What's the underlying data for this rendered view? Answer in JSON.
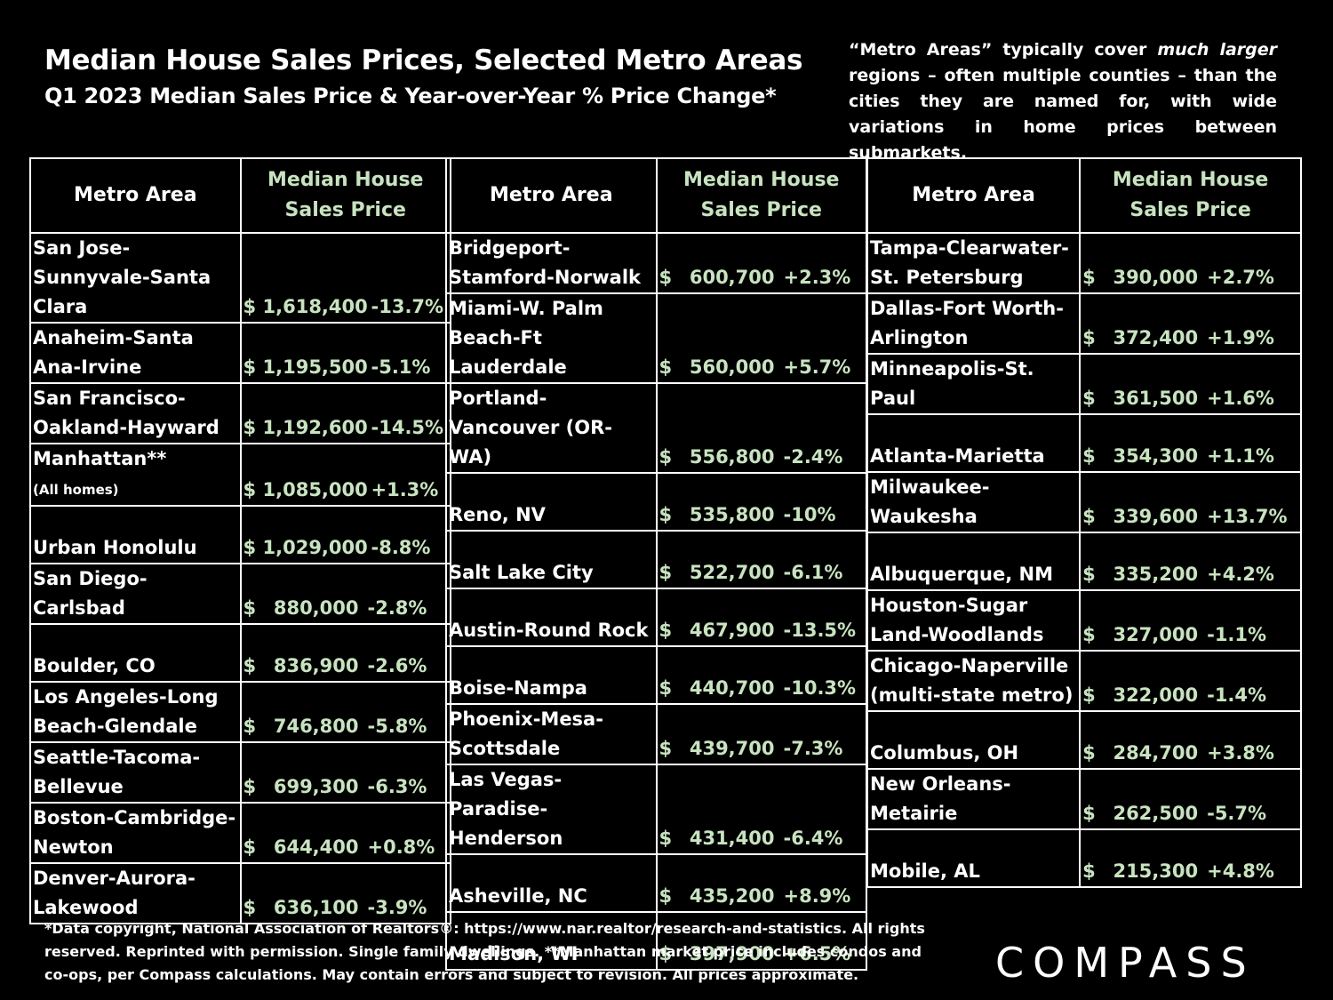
{
  "title": "Median House Sales Prices, Selected Metro Areas",
  "subtitle": "Q1 2023 Median Sales Price & Year-over-Year % Price Change*",
  "note_parts": [
    "“Metro Areas” typically cover ",
    "much larger",
    " regions – often multiple counties – than the cities they are named for, with wide variations in home prices between submarkets."
  ],
  "headers": {
    "area": "Metro Area",
    "price": "Median House Sales Price"
  },
  "currency": "$",
  "footer": "*Data copyright, National Association of Realtors®:  https://www.nar.realtor/research-and-statistics. All rights reserved. Reprinted with permission. Single family dwellings. **Manhattan market price includes condos and co-ops, per Compass calculations. May contain errors and subject to revision. All prices approximate.",
  "logo": "COMPASS",
  "chart_data": {
    "type": "table",
    "title": "Median House Sales Prices, Selected Metro Areas",
    "subtitle": "Q1 2023 Median Sales Price & Year-over-Year % Price Change*",
    "columns": [
      [
        {
          "area": "San Jose-Sunnyvale-Santa Clara",
          "price": "1,618,400",
          "change": "-13.7%"
        },
        {
          "area": "Anaheim-Santa Ana-Irvine",
          "price": "1,195,500",
          "change": "-5.1%"
        },
        {
          "area": "San Francisco-Oakland-Hayward",
          "price": "1,192,600",
          "change": "-14.5%"
        },
        {
          "area": "Manhattan**",
          "area_sub": "(All homes)",
          "price": "1,085,000",
          "change": "+1.3%"
        },
        {
          "area": "Urban Honolulu",
          "price": "1,029,000",
          "change": "-8.8%"
        },
        {
          "area": "San Diego-Carlsbad",
          "price": "880,000",
          "change": "-2.8%"
        },
        {
          "area": "Boulder, CO",
          "price": "836,900",
          "change": "-2.6%"
        },
        {
          "area": "Los Angeles-Long Beach-Glendale",
          "price": "746,800",
          "change": "-5.8%"
        },
        {
          "area": "Seattle-Tacoma-Bellevue",
          "price": "699,300",
          "change": "-6.3%"
        },
        {
          "area": "Boston-Cambridge-Newton",
          "price": "644,400",
          "change": "+0.8%"
        },
        {
          "area": "Denver-Aurora-Lakewood",
          "price": "636,100",
          "change": "-3.9%"
        }
      ],
      [
        {
          "area": "Bridgeport-Stamford-Norwalk",
          "price": "600,700",
          "change": "+2.3%"
        },
        {
          "area": "Miami-W. Palm Beach-Ft Lauderdale",
          "price": "560,000",
          "change": "+5.7%"
        },
        {
          "area": "Portland-Vancouver (OR-WA)",
          "price": "556,800",
          "change": "-2.4%"
        },
        {
          "area": "Reno, NV",
          "price": "535,800",
          "change": "-10%"
        },
        {
          "area": "Salt Lake City",
          "price": "522,700",
          "change": "-6.1%"
        },
        {
          "area": "Austin-Round Rock",
          "price": "467,900",
          "change": "-13.5%"
        },
        {
          "area": "Boise-Nampa",
          "price": "440,700",
          "change": "-10.3%"
        },
        {
          "area": "Phoenix-Mesa-Scottsdale",
          "price": "439,700",
          "change": "-7.3%"
        },
        {
          "area": "Las Vegas-Paradise-Henderson",
          "price": "431,400",
          "change": "-6.4%"
        },
        {
          "area": "Asheville, NC",
          "price": "435,200",
          "change": "+8.9%"
        },
        {
          "area": "Madison, WI",
          "price": "397,900",
          "change": "+6.5%"
        }
      ],
      [
        {
          "area": "Tampa-Clearwater-St. Petersburg",
          "price": "390,000",
          "change": "+2.7%"
        },
        {
          "area": "Dallas-Fort Worth-Arlington",
          "price": "372,400",
          "change": "+1.9%"
        },
        {
          "area": "Minneapolis-St. Paul",
          "price": "361,500",
          "change": "+1.6%"
        },
        {
          "area": "Atlanta-Marietta",
          "price": "354,300",
          "change": "+1.1%"
        },
        {
          "area": "Milwaukee-Waukesha",
          "price": "339,600",
          "change": "+13.7%"
        },
        {
          "area": "Albuquerque, NM",
          "price": "335,200",
          "change": "+4.2%"
        },
        {
          "area": "Houston-Sugar Land-Woodlands",
          "price": "327,000",
          "change": "-1.1%"
        },
        {
          "area": "Chicago-Naperville (multi-state metro)",
          "price": "322,000",
          "change": "-1.4%"
        },
        {
          "area": "Columbus, OH",
          "price": "284,700",
          "change": "+3.8%"
        },
        {
          "area": "New Orleans-Metairie",
          "price": "262,500",
          "change": "-5.7%"
        },
        {
          "area": "Mobile, AL",
          "price": "215,300",
          "change": "+4.8%"
        }
      ]
    ]
  }
}
